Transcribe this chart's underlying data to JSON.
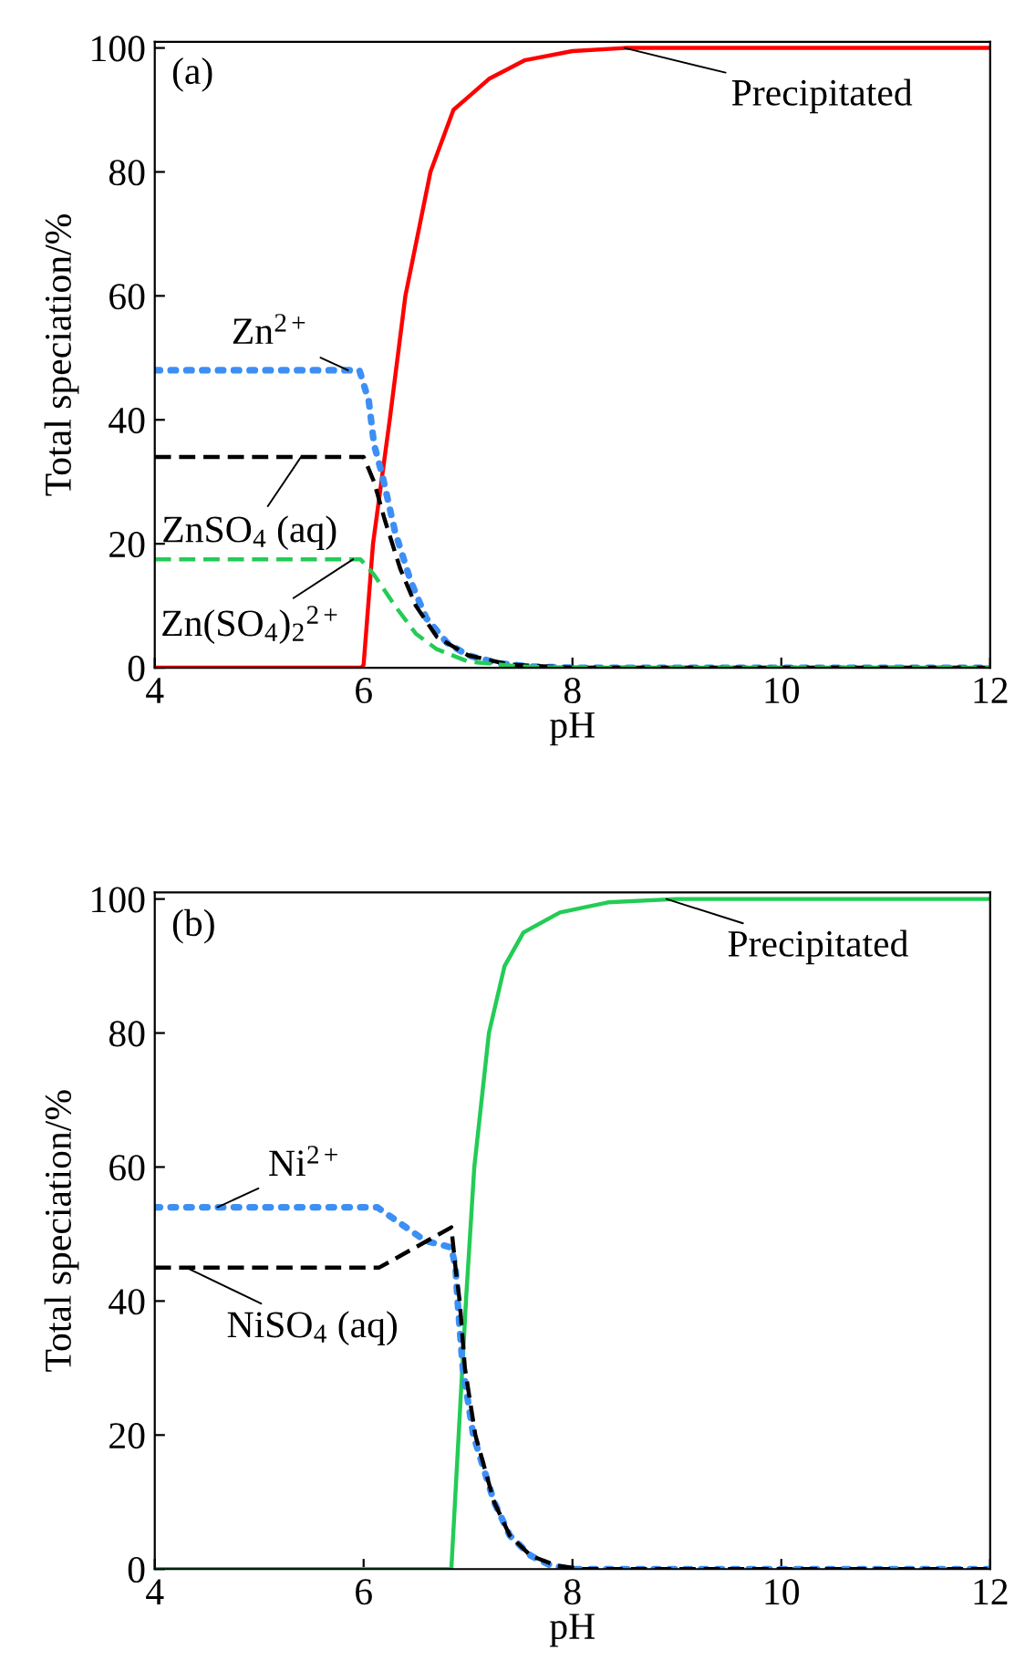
{
  "chart_data": [
    {
      "type": "line",
      "title": "(a)",
      "xlabel": "pH",
      "ylabel": "Total speciation/%",
      "xlim": [
        4,
        12
      ],
      "ylim": [
        0,
        101
      ],
      "xticks": [
        4,
        6,
        8,
        10,
        12
      ],
      "yticks": [
        0,
        20,
        40,
        60,
        80,
        100
      ],
      "grid": false,
      "legend": false,
      "series": [
        {
          "color": "#ff0000",
          "line_style": "solid",
          "x": [
            4,
            5.98,
            6.0,
            6.09,
            6.25,
            6.4,
            6.64,
            6.86,
            7.2,
            7.54,
            8.0,
            8.5,
            12
          ],
          "values": [
            0,
            0,
            0.5,
            20,
            40,
            60,
            80,
            90,
            95,
            98,
            99.5,
            100,
            100
          ]
        },
        {
          "color": "#3d8ff5",
          "line_style": "dotted",
          "x": [
            4,
            5.96,
            6.05,
            6.1,
            6.18,
            6.3,
            6.45,
            6.6,
            6.8,
            7.0,
            7.3,
            7.6,
            8.0,
            12
          ],
          "values": [
            48,
            48,
            43,
            36,
            31,
            22,
            14,
            8,
            4,
            2,
            0.7,
            0.2,
            0,
            0
          ]
        },
        {
          "color": "#000000",
          "line_style": "dashed",
          "x": [
            4,
            6.0,
            6.1,
            6.2,
            6.35,
            6.5,
            6.7,
            7.0,
            7.4,
            8.0,
            12
          ],
          "values": [
            34,
            34,
            30,
            24,
            16,
            10,
            5,
            2,
            0.5,
            0,
            0
          ]
        },
        {
          "color": "#22cc55",
          "line_style": "dashed",
          "x": [
            4,
            5.97,
            6.05,
            6.1,
            6.3,
            6.5,
            6.7,
            7.0,
            7.5,
            8.0,
            12
          ],
          "values": [
            17.5,
            17.5,
            16,
            15,
            10,
            5.5,
            3,
            1,
            0.2,
            0,
            0
          ]
        }
      ],
      "annotations": [
        {
          "text": "Precipitated",
          "x": 8.5,
          "y": 100
        },
        {
          "text": "Zn$^{2+}$",
          "x": 5.85,
          "y": 48
        },
        {
          "text": "ZnSO$_{4}$ (aq)",
          "x": 5.4,
          "y": 34
        },
        {
          "text": "Zn(SO$_{4}$)$_{2}$$^{2+}$",
          "x": 5.9,
          "y": 17.5
        }
      ]
    },
    {
      "type": "line",
      "title": "(b)",
      "xlabel": "pH",
      "ylabel": "Total speciation/%",
      "xlim": [
        4,
        12
      ],
      "ylim": [
        0,
        101
      ],
      "xticks": [
        4,
        6,
        8,
        10,
        12
      ],
      "yticks": [
        0,
        20,
        40,
        60,
        80,
        100
      ],
      "grid": false,
      "legend": false,
      "series": [
        {
          "color": "#22cc55",
          "line_style": "solid",
          "x": [
            4,
            6.84,
            6.98,
            7.06,
            7.2,
            7.35,
            7.53,
            7.88,
            8.34,
            9.0,
            12
          ],
          "values": [
            0,
            0,
            40,
            60,
            80,
            90,
            95,
            98,
            99.5,
            100,
            100
          ]
        },
        {
          "color": "#3d8ff5",
          "line_style": "dotted",
          "x": [
            4,
            6.13,
            6.59,
            6.84,
            6.88,
            6.9,
            6.95,
            7.05,
            7.25,
            7.4,
            7.6,
            7.8,
            8.0,
            12
          ],
          "values": [
            54,
            54,
            49,
            48,
            45,
            40,
            30,
            20,
            10,
            5,
            2,
            0.5,
            0,
            0
          ]
        },
        {
          "color": "#000000",
          "line_style": "dashed",
          "x": [
            4,
            6.15,
            6.84,
            6.88,
            6.92,
            6.97,
            7.07,
            7.25,
            7.4,
            7.6,
            7.85,
            8.1,
            12
          ],
          "values": [
            45,
            45,
            51,
            45,
            40,
            30,
            20,
            10,
            5,
            2,
            0.5,
            0,
            0
          ]
        }
      ],
      "annotations": [
        {
          "text": "Precipitated",
          "x": 8.9,
          "y": 100
        },
        {
          "text": "Ni$^{2+}$",
          "x": 4.6,
          "y": 54
        },
        {
          "text": "NiSO$_{4}$ (aq)",
          "x": 4.3,
          "y": 45
        }
      ]
    }
  ]
}
